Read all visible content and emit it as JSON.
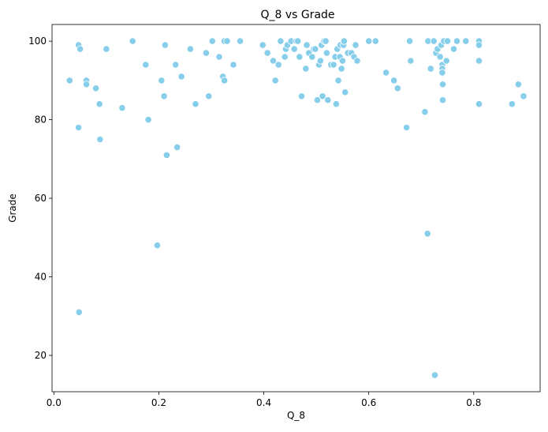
{
  "chart_data": {
    "type": "scatter",
    "title": "Q_8 vs Grade",
    "xlabel": "Q_8",
    "ylabel": "Grade",
    "xlim": [
      -0.0035,
      0.9265
    ],
    "ylim": [
      10.75,
      104.25
    ],
    "xticks": [
      0.0,
      0.2,
      0.4,
      0.6,
      0.8
    ],
    "xtick_labels": [
      "0.0",
      "0.2",
      "0.4",
      "0.6",
      "0.8"
    ],
    "yticks": [
      20,
      40,
      60,
      80,
      100
    ],
    "ytick_labels": [
      "20",
      "40",
      "60",
      "80",
      "100"
    ],
    "grid": false,
    "marker_color": "#87CEEB",
    "points": [
      {
        "x": 0.03,
        "y": 90
      },
      {
        "x": 0.047,
        "y": 99
      },
      {
        "x": 0.05,
        "y": 98
      },
      {
        "x": 0.047,
        "y": 78
      },
      {
        "x": 0.048,
        "y": 31
      },
      {
        "x": 0.062,
        "y": 90
      },
      {
        "x": 0.062,
        "y": 89
      },
      {
        "x": 0.08,
        "y": 88
      },
      {
        "x": 0.087,
        "y": 84
      },
      {
        "x": 0.088,
        "y": 75
      },
      {
        "x": 0.1,
        "y": 98
      },
      {
        "x": 0.13,
        "y": 83
      },
      {
        "x": 0.15,
        "y": 100
      },
      {
        "x": 0.175,
        "y": 94
      },
      {
        "x": 0.18,
        "y": 80
      },
      {
        "x": 0.197,
        "y": 48
      },
      {
        "x": 0.205,
        "y": 90
      },
      {
        "x": 0.21,
        "y": 86
      },
      {
        "x": 0.212,
        "y": 99
      },
      {
        "x": 0.215,
        "y": 71
      },
      {
        "x": 0.232,
        "y": 94
      },
      {
        "x": 0.235,
        "y": 73
      },
      {
        "x": 0.243,
        "y": 91
      },
      {
        "x": 0.26,
        "y": 98
      },
      {
        "x": 0.27,
        "y": 84
      },
      {
        "x": 0.29,
        "y": 97
      },
      {
        "x": 0.295,
        "y": 86
      },
      {
        "x": 0.302,
        "y": 100
      },
      {
        "x": 0.315,
        "y": 96
      },
      {
        "x": 0.322,
        "y": 91
      },
      {
        "x": 0.325,
        "y": 90
      },
      {
        "x": 0.325,
        "y": 100
      },
      {
        "x": 0.33,
        "y": 100
      },
      {
        "x": 0.342,
        "y": 94
      },
      {
        "x": 0.355,
        "y": 100
      },
      {
        "x": 0.398,
        "y": 99
      },
      {
        "x": 0.407,
        "y": 97
      },
      {
        "x": 0.418,
        "y": 95
      },
      {
        "x": 0.422,
        "y": 90
      },
      {
        "x": 0.428,
        "y": 94
      },
      {
        "x": 0.432,
        "y": 100
      },
      {
        "x": 0.44,
        "y": 96
      },
      {
        "x": 0.442,
        "y": 98
      },
      {
        "x": 0.445,
        "y": 99
      },
      {
        "x": 0.452,
        "y": 100
      },
      {
        "x": 0.458,
        "y": 98
      },
      {
        "x": 0.462,
        "y": 100
      },
      {
        "x": 0.465,
        "y": 100
      },
      {
        "x": 0.468,
        "y": 96
      },
      {
        "x": 0.472,
        "y": 86
      },
      {
        "x": 0.48,
        "y": 93
      },
      {
        "x": 0.482,
        "y": 99
      },
      {
        "x": 0.486,
        "y": 97
      },
      {
        "x": 0.492,
        "y": 96
      },
      {
        "x": 0.495,
        "y": 98
      },
      {
        "x": 0.498,
        "y": 98
      },
      {
        "x": 0.502,
        "y": 85
      },
      {
        "x": 0.505,
        "y": 94
      },
      {
        "x": 0.508,
        "y": 95
      },
      {
        "x": 0.51,
        "y": 99
      },
      {
        "x": 0.512,
        "y": 86
      },
      {
        "x": 0.515,
        "y": 100
      },
      {
        "x": 0.518,
        "y": 100
      },
      {
        "x": 0.52,
        "y": 97
      },
      {
        "x": 0.522,
        "y": 85
      },
      {
        "x": 0.528,
        "y": 94
      },
      {
        "x": 0.533,
        "y": 94
      },
      {
        "x": 0.536,
        "y": 96
      },
      {
        "x": 0.538,
        "y": 84
      },
      {
        "x": 0.54,
        "y": 98
      },
      {
        "x": 0.542,
        "y": 90
      },
      {
        "x": 0.545,
        "y": 96
      },
      {
        "x": 0.546,
        "y": 99
      },
      {
        "x": 0.548,
        "y": 93
      },
      {
        "x": 0.55,
        "y": 95
      },
      {
        "x": 0.552,
        "y": 99
      },
      {
        "x": 0.553,
        "y": 100
      },
      {
        "x": 0.555,
        "y": 87
      },
      {
        "x": 0.56,
        "y": 97
      },
      {
        "x": 0.567,
        "y": 97
      },
      {
        "x": 0.572,
        "y": 96
      },
      {
        "x": 0.575,
        "y": 99
      },
      {
        "x": 0.578,
        "y": 95
      },
      {
        "x": 0.6,
        "y": 100
      },
      {
        "x": 0.613,
        "y": 100
      },
      {
        "x": 0.633,
        "y": 92
      },
      {
        "x": 0.648,
        "y": 90
      },
      {
        "x": 0.655,
        "y": 88
      },
      {
        "x": 0.672,
        "y": 78
      },
      {
        "x": 0.678,
        "y": 100
      },
      {
        "x": 0.68,
        "y": 95
      },
      {
        "x": 0.707,
        "y": 82
      },
      {
        "x": 0.712,
        "y": 51
      },
      {
        "x": 0.713,
        "y": 100
      },
      {
        "x": 0.718,
        "y": 93
      },
      {
        "x": 0.724,
        "y": 100
      },
      {
        "x": 0.726,
        "y": 15
      },
      {
        "x": 0.728,
        "y": 97
      },
      {
        "x": 0.731,
        "y": 98
      },
      {
        "x": 0.736,
        "y": 96
      },
      {
        "x": 0.738,
        "y": 99
      },
      {
        "x": 0.74,
        "y": 94
      },
      {
        "x": 0.74,
        "y": 93
      },
      {
        "x": 0.74,
        "y": 92
      },
      {
        "x": 0.741,
        "y": 89
      },
      {
        "x": 0.741,
        "y": 85
      },
      {
        "x": 0.743,
        "y": 100
      },
      {
        "x": 0.748,
        "y": 95
      },
      {
        "x": 0.75,
        "y": 100
      },
      {
        "x": 0.762,
        "y": 98
      },
      {
        "x": 0.768,
        "y": 100
      },
      {
        "x": 0.785,
        "y": 100
      },
      {
        "x": 0.81,
        "y": 100
      },
      {
        "x": 0.81,
        "y": 99
      },
      {
        "x": 0.81,
        "y": 95
      },
      {
        "x": 0.81,
        "y": 84
      },
      {
        "x": 0.873,
        "y": 84
      },
      {
        "x": 0.885,
        "y": 89
      },
      {
        "x": 0.895,
        "y": 86
      }
    ]
  }
}
